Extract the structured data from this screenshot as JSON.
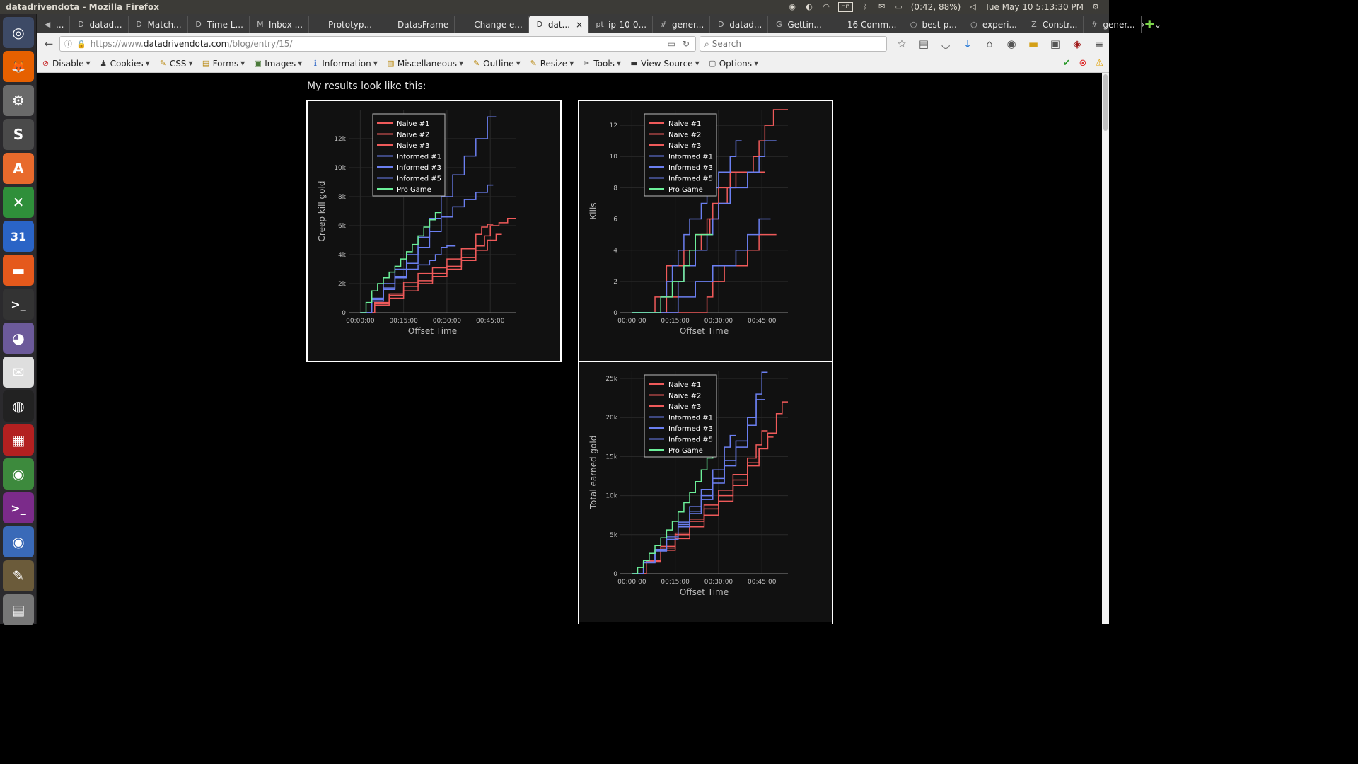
{
  "system": {
    "window_title": "datadrivendota - Mozilla Firefox",
    "battery": "(0:42, 88%)",
    "clock": "Tue May 10  5:13:30 PM",
    "keyboard": "En"
  },
  "launcher": [
    {
      "name": "dash-icon",
      "glyph": "◎",
      "bg": "#3d4a66"
    },
    {
      "name": "firefox-icon",
      "glyph": "🦊",
      "bg": "#e66000"
    },
    {
      "name": "system-settings-icon",
      "glyph": "⚙",
      "bg": "#6a6a6a"
    },
    {
      "name": "sublime-text-icon",
      "glyph": "S",
      "bg": "#4a4a4a"
    },
    {
      "name": "software-center-icon",
      "glyph": "A",
      "bg": "#e86a2c"
    },
    {
      "name": "spreadsheet-icon",
      "glyph": "✕",
      "bg": "#2f8f3a"
    },
    {
      "name": "calendar-icon",
      "glyph": "31",
      "bg": "#2a64c6"
    },
    {
      "name": "files-icon",
      "glyph": "▬",
      "bg": "#e5591c"
    },
    {
      "name": "terminal-icon",
      "glyph": ">_",
      "bg": "#333"
    },
    {
      "name": "pidgin-icon",
      "glyph": "◕",
      "bg": "#6c5a9a"
    },
    {
      "name": "mail-icon",
      "glyph": "✉",
      "bg": "#dedede"
    },
    {
      "name": "steam-icon",
      "glyph": "◍",
      "bg": "#222"
    },
    {
      "name": "workspace-icon",
      "glyph": "▦",
      "bg": "#b32020"
    },
    {
      "name": "chrome-icon",
      "glyph": "◉",
      "bg": "#3d8a3d"
    },
    {
      "name": "terminal2-icon",
      "glyph": ">_",
      "bg": "#7b2b8a"
    },
    {
      "name": "chromium-icon",
      "glyph": "◉",
      "bg": "#3a6ab8"
    },
    {
      "name": "gimp-icon",
      "glyph": "✎",
      "bg": "#6b5b3a"
    },
    {
      "name": "trash-icon",
      "glyph": "▤",
      "bg": "#777"
    }
  ],
  "tabs": [
    {
      "label": "...",
      "fav": "◀"
    },
    {
      "label": "datad...",
      "fav": "D"
    },
    {
      "label": "Match...",
      "fav": "D"
    },
    {
      "label": "Time L...",
      "fav": "D"
    },
    {
      "label": "Inbox ...",
      "fav": "M"
    },
    {
      "label": "Prototyp...",
      "fav": ""
    },
    {
      "label": "DatasFrame",
      "fav": ""
    },
    {
      "label": "Change e...",
      "fav": ""
    },
    {
      "label": "dat...",
      "fav": "D",
      "active": true
    },
    {
      "label": "ip-10-0...",
      "fav": "pt"
    },
    {
      "label": "gener...",
      "fav": "#"
    },
    {
      "label": "datad...",
      "fav": "D"
    },
    {
      "label": "Gettin...",
      "fav": "G"
    },
    {
      "label": "16 Comm...",
      "fav": ""
    },
    {
      "label": "best-p...",
      "fav": "○"
    },
    {
      "label": "experi...",
      "fav": "○"
    },
    {
      "label": "Constr...",
      "fav": "Z"
    },
    {
      "label": "gener...",
      "fav": "#"
    }
  ],
  "nav": {
    "url_prefix": "https://www.",
    "url_host": "datadrivendota.com",
    "url_path": "/blog/entry/15/",
    "search_placeholder": "Search"
  },
  "devtoolbar": [
    {
      "label": "Disable",
      "icon": "⊘",
      "color": "#c62828"
    },
    {
      "label": "Cookies",
      "icon": "♟",
      "color": "#333"
    },
    {
      "label": "CSS",
      "icon": "✎",
      "color": "#b8860b"
    },
    {
      "label": "Forms",
      "icon": "▤",
      "color": "#b8860b"
    },
    {
      "label": "Images",
      "icon": "▣",
      "color": "#4a7a3a"
    },
    {
      "label": "Information",
      "icon": "ℹ",
      "color": "#2a64c6"
    },
    {
      "label": "Miscellaneous",
      "icon": "▥",
      "color": "#b8860b"
    },
    {
      "label": "Outline",
      "icon": "✎",
      "color": "#b8860b"
    },
    {
      "label": "Resize",
      "icon": "✎",
      "color": "#b8860b"
    },
    {
      "label": "Tools",
      "icon": "✂",
      "color": "#555"
    },
    {
      "label": "View Source",
      "icon": "▬",
      "color": "#333"
    },
    {
      "label": "Options",
      "icon": "▢",
      "color": "#555"
    }
  ],
  "page": {
    "intro": "My results look like this:"
  },
  "legend": [
    "Naive #1",
    "Naive #2",
    "Naive #3",
    "Informed #1",
    "Informed #3",
    "Informed #5",
    "Pro Game"
  ],
  "series_colors": {
    "naive": "#ef5a5a",
    "informed": "#6b7ff0",
    "pro": "#6cf09a"
  },
  "chart_data": [
    {
      "type": "line",
      "title": "",
      "xlabel": "Offset Time",
      "ylabel": "Creep kill gold",
      "x_ticks": [
        "00:00:00",
        "00:15:00",
        "00:30:00",
        "00:45:00"
      ],
      "x_tick_minutes": [
        0,
        15,
        30,
        45
      ],
      "xlim": [
        -4,
        54
      ],
      "ylim": [
        0,
        14000
      ],
      "y_ticks": [
        0,
        2000,
        4000,
        6000,
        8000,
        10000,
        12000
      ],
      "y_tick_labels": [
        "0",
        "2k",
        "4k",
        "6k",
        "8k",
        "10k",
        "12k"
      ],
      "legend_position": "top-left",
      "series": [
        {
          "name": "Naive #1",
          "group": "naive",
          "x": [
            0,
            5,
            10,
            15,
            20,
            25,
            30,
            35,
            40,
            43,
            45,
            48,
            51,
            54
          ],
          "y": [
            0,
            600,
            1200,
            1800,
            2200,
            2700,
            3200,
            3800,
            4600,
            5300,
            6000,
            6200,
            6500,
            6500
          ]
        },
        {
          "name": "Naive #2",
          "group": "naive",
          "x": [
            0,
            5,
            10,
            15,
            20,
            25,
            30,
            35,
            40,
            42,
            44,
            46
          ],
          "y": [
            0,
            700,
            1300,
            2100,
            2700,
            3100,
            3700,
            4400,
            5400,
            5900,
            6100,
            6100
          ]
        },
        {
          "name": "Naive #3",
          "group": "naive",
          "x": [
            0,
            5,
            10,
            15,
            20,
            25,
            30,
            35,
            40,
            44,
            47,
            49
          ],
          "y": [
            0,
            500,
            1000,
            1500,
            2000,
            2500,
            3000,
            3600,
            4300,
            5000,
            5400,
            5400
          ]
        },
        {
          "name": "Informed #1",
          "group": "informed",
          "x": [
            0,
            4,
            8,
            12,
            16,
            20,
            24,
            28,
            32,
            36,
            40,
            44,
            47
          ],
          "y": [
            0,
            1000,
            2000,
            3000,
            4000,
            5200,
            6500,
            8000,
            9500,
            10800,
            12000,
            13500,
            13500
          ]
        },
        {
          "name": "Informed #3",
          "group": "informed",
          "x": [
            0,
            4,
            8,
            12,
            16,
            20,
            24,
            28,
            32,
            36,
            40,
            44,
            46
          ],
          "y": [
            0,
            800,
            1600,
            2400,
            3400,
            4500,
            5600,
            6600,
            7300,
            7800,
            8300,
            8800,
            8800
          ]
        },
        {
          "name": "Informed #5",
          "group": "informed",
          "x": [
            0,
            4,
            8,
            12,
            16,
            20,
            24,
            26,
            28,
            30,
            33
          ],
          "y": [
            0,
            900,
            1700,
            2500,
            3000,
            3300,
            3600,
            4000,
            4500,
            4600,
            4600
          ]
        },
        {
          "name": "Pro Game",
          "group": "pro",
          "x": [
            0,
            2,
            4,
            6,
            8,
            10,
            12,
            14,
            16,
            18,
            20,
            22,
            24,
            26,
            28
          ],
          "y": [
            0,
            700,
            1500,
            2000,
            2400,
            2800,
            3200,
            3700,
            4200,
            4700,
            5300,
            5900,
            6400,
            6900,
            7000
          ]
        }
      ]
    },
    {
      "type": "line",
      "title": "",
      "xlabel": "Offset Time",
      "ylabel": "Kills",
      "x_ticks": [
        "00:00:00",
        "00:15:00",
        "00:30:00",
        "00:45:00"
      ],
      "x_tick_minutes": [
        0,
        15,
        30,
        45
      ],
      "xlim": [
        -4,
        54
      ],
      "ylim": [
        0,
        13
      ],
      "y_ticks": [
        0,
        2,
        4,
        6,
        8,
        10,
        12
      ],
      "y_tick_labels": [
        "0",
        "2",
        "4",
        "6",
        "8",
        "10",
        "12"
      ],
      "legend_position": "top-left",
      "series": [
        {
          "name": "Naive #1",
          "group": "naive",
          "x": [
            0,
            8,
            10,
            12,
            16,
            18,
            20,
            22,
            24,
            27,
            30,
            33,
            36,
            40,
            42,
            44,
            46,
            49,
            54
          ],
          "y": [
            0,
            1,
            1,
            3,
            3,
            4,
            4,
            5,
            5,
            6,
            7,
            8,
            9,
            9,
            10,
            11,
            12,
            13,
            13
          ]
        },
        {
          "name": "Naive #2",
          "group": "naive",
          "x": [
            0,
            12,
            14,
            16,
            18,
            20,
            22,
            24,
            26,
            28,
            30,
            34,
            38,
            42,
            46
          ],
          "y": [
            0,
            1,
            1,
            2,
            3,
            3,
            4,
            5,
            6,
            7,
            8,
            9,
            9,
            9,
            9
          ]
        },
        {
          "name": "Naive #3",
          "group": "naive",
          "x": [
            0,
            24,
            26,
            28,
            30,
            32,
            34,
            36,
            38,
            40,
            42,
            44,
            46,
            50
          ],
          "y": [
            0,
            0,
            1,
            2,
            2,
            3,
            3,
            3,
            3,
            4,
            4,
            5,
            5,
            5
          ]
        },
        {
          "name": "Informed #1",
          "group": "informed",
          "x": [
            0,
            10,
            12,
            14,
            16,
            18,
            20,
            22,
            24,
            26,
            30,
            34,
            36,
            38
          ],
          "y": [
            0,
            1,
            2,
            3,
            4,
            5,
            6,
            6,
            7,
            8,
            9,
            10,
            11,
            11
          ]
        },
        {
          "name": "Informed #3",
          "group": "informed",
          "x": [
            0,
            14,
            16,
            18,
            20,
            22,
            24,
            26,
            28,
            30,
            32,
            34,
            36,
            40,
            42,
            44,
            46,
            48,
            50
          ],
          "y": [
            0,
            0,
            2,
            3,
            3,
            4,
            4,
            5,
            6,
            7,
            7,
            8,
            8,
            9,
            9,
            10,
            11,
            11,
            11
          ]
        },
        {
          "name": "Informed #5",
          "group": "informed",
          "x": [
            0,
            8,
            12,
            16,
            20,
            22,
            26,
            28,
            32,
            36,
            40,
            42,
            44,
            46,
            48
          ],
          "y": [
            0,
            0,
            0,
            1,
            1,
            2,
            2,
            3,
            3,
            4,
            5,
            5,
            6,
            6,
            6
          ]
        },
        {
          "name": "Pro Game",
          "group": "pro",
          "x": [
            0,
            10,
            12,
            14,
            16,
            18,
            20,
            22,
            24,
            26,
            28
          ],
          "y": [
            0,
            1,
            1,
            2,
            2,
            3,
            4,
            5,
            5,
            5,
            5
          ]
        }
      ]
    },
    {
      "type": "line",
      "title": "",
      "xlabel": "Offset Time",
      "ylabel": "Total earned gold",
      "x_ticks": [
        "00:00:00",
        "00:15:00",
        "00:30:00",
        "00:45:00"
      ],
      "x_tick_minutes": [
        0,
        15,
        30,
        45
      ],
      "xlim": [
        -4,
        54
      ],
      "ylim": [
        0,
        26000
      ],
      "y_ticks": [
        0,
        5000,
        10000,
        15000,
        20000,
        25000
      ],
      "y_tick_labels": [
        "0",
        "5k",
        "10k",
        "15k",
        "20k",
        "25k"
      ],
      "legend_position": "top-left",
      "series": [
        {
          "name": "Naive #1",
          "group": "naive",
          "x": [
            0,
            5,
            10,
            15,
            20,
            25,
            30,
            35,
            40,
            44,
            47,
            50,
            52,
            54
          ],
          "y": [
            0,
            1500,
            3000,
            4500,
            6000,
            7500,
            9300,
            11300,
            13800,
            16000,
            18000,
            20500,
            22000,
            22000
          ]
        },
        {
          "name": "Naive #2",
          "group": "naive",
          "x": [
            0,
            5,
            10,
            15,
            20,
            25,
            30,
            35,
            40,
            44,
            47,
            49
          ],
          "y": [
            0,
            1600,
            3300,
            5000,
            6700,
            8300,
            10000,
            12000,
            14200,
            16000,
            17500,
            17500
          ]
        },
        {
          "name": "Naive #3",
          "group": "naive",
          "x": [
            0,
            5,
            10,
            15,
            20,
            25,
            30,
            35,
            40,
            43,
            45,
            47
          ],
          "y": [
            0,
            1700,
            3500,
            5200,
            7000,
            8800,
            10700,
            12700,
            14800,
            16500,
            18300,
            18300
          ]
        },
        {
          "name": "Informed #1",
          "group": "informed",
          "x": [
            0,
            4,
            8,
            12,
            16,
            20,
            24,
            28,
            32,
            36,
            40,
            43,
            45,
            47
          ],
          "y": [
            0,
            1500,
            3000,
            4600,
            6300,
            8000,
            10000,
            12200,
            14500,
            17000,
            20000,
            23000,
            25800,
            25800
          ]
        },
        {
          "name": "Informed #3",
          "group": "informed",
          "x": [
            0,
            4,
            8,
            12,
            16,
            20,
            24,
            28,
            32,
            36,
            40,
            43,
            46
          ],
          "y": [
            0,
            1400,
            2900,
            4400,
            6000,
            7700,
            9500,
            11600,
            13800,
            16200,
            19000,
            22300,
            22300
          ]
        },
        {
          "name": "Informed #5",
          "group": "informed",
          "x": [
            0,
            4,
            8,
            12,
            16,
            20,
            24,
            28,
            32,
            34,
            36
          ],
          "y": [
            0,
            1500,
            3100,
            4800,
            6600,
            8600,
            10800,
            13300,
            16200,
            17700,
            17700
          ]
        },
        {
          "name": "Pro Game",
          "group": "pro",
          "x": [
            0,
            2,
            4,
            6,
            8,
            10,
            12,
            14,
            16,
            18,
            20,
            22,
            24,
            26,
            28
          ],
          "y": [
            0,
            800,
            1700,
            2600,
            3600,
            4600,
            5600,
            6700,
            7900,
            9100,
            10400,
            11800,
            13300,
            14800,
            16000
          ]
        }
      ]
    }
  ]
}
